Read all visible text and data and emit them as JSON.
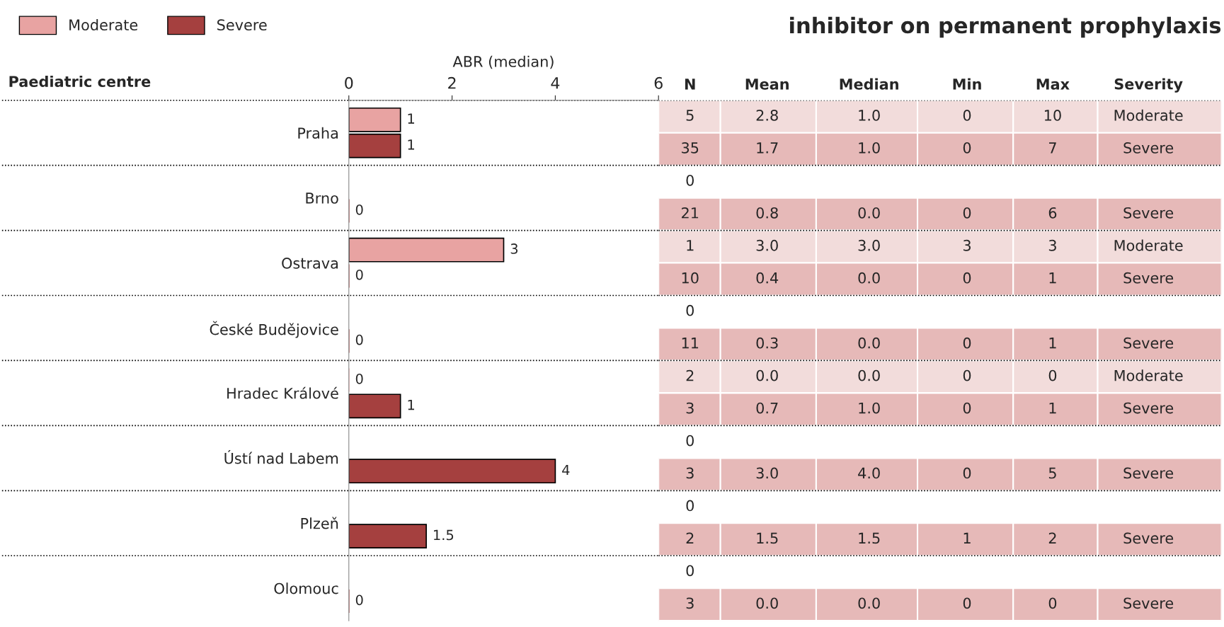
{
  "chart_data": [
    {
      "type": "bar",
      "orientation": "horizontal",
      "xlabel": "ABR (median)",
      "ylabel": "Paediatric centre",
      "categories": [
        "Praha",
        "Brno",
        "Ostrava",
        "České Budějovice",
        "Hradec Králové",
        "Ústí nad Labem",
        "Plzeň",
        "Olomouc"
      ],
      "series": [
        {
          "name": "Moderate",
          "color": "#e8a3a2",
          "values": [
            1,
            null,
            3,
            null,
            0,
            null,
            null,
            null
          ]
        },
        {
          "name": "Severe",
          "color": "#a5403f",
          "values": [
            1,
            0,
            0,
            0,
            1,
            4,
            1.5,
            0
          ]
        }
      ],
      "xlim": [
        0,
        6
      ],
      "xticks": [
        0,
        2,
        4,
        6
      ],
      "data_labels": true,
      "legend": "top left",
      "grid": false
    },
    {
      "type": "other",
      "title": "inhibitor on permanent prophylaxis",
      "categories": [
        "N",
        "Mean",
        "Median",
        "Min",
        "Max",
        "Severity"
      ],
      "colors": [
        "#f2dcdb",
        "#e6b9b8",
        null,
        "#e6b9b8",
        "#f2dcdb",
        "#e6b9b8",
        null,
        "#e6b9b8",
        "#f2dcdb",
        "#e6b9b8",
        null,
        "#e6b9b8",
        null,
        "#e6b9b8",
        null,
        "#e6b9b8"
      ],
      "cell_labels": [
        [
          "5",
          "2.8",
          "1.0",
          "0",
          "10",
          "Moderate"
        ],
        [
          "35",
          "1.7",
          "1.0",
          "0",
          "7",
          "Severe"
        ],
        [
          "0",
          null,
          null,
          null,
          null,
          null
        ],
        [
          "21",
          "0.8",
          "0.0",
          "0",
          "6",
          "Severe"
        ],
        [
          "1",
          "3.0",
          "3.0",
          "3",
          "3",
          "Moderate"
        ],
        [
          "10",
          "0.4",
          "0.0",
          "0",
          "1",
          "Severe"
        ],
        [
          "0",
          null,
          null,
          null,
          null,
          null
        ],
        [
          "11",
          "0.3",
          "0.0",
          "0",
          "1",
          "Severe"
        ],
        [
          "2",
          "0.0",
          "0.0",
          "0",
          "0",
          "Moderate"
        ],
        [
          "3",
          "0.7",
          "1.0",
          "0",
          "1",
          "Severe"
        ],
        [
          "0",
          null,
          null,
          null,
          null,
          null
        ],
        [
          "3",
          "3.0",
          "4.0",
          "0",
          "5",
          "Severe"
        ],
        [
          "0",
          null,
          null,
          null,
          null,
          null
        ],
        [
          "2",
          "1.5",
          "1.5",
          "1",
          "2",
          "Severe"
        ],
        [
          "0",
          null,
          null,
          null,
          null,
          null
        ],
        [
          "3",
          "0.0",
          "0.0",
          "0",
          "0",
          "Severe"
        ]
      ]
    }
  ]
}
